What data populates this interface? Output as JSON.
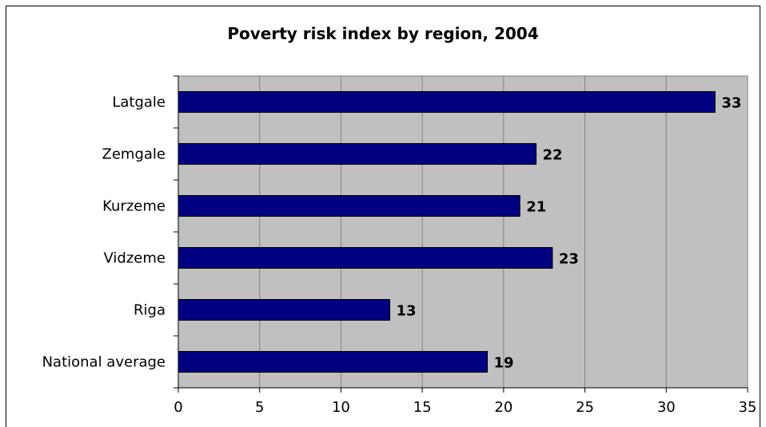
{
  "chart_data": {
    "type": "bar",
    "orientation": "horizontal",
    "title": "Poverty risk index by region, 2004",
    "xlabel": "",
    "ylabel": "",
    "categories": [
      "Latgale",
      "Zemgale",
      "Kurzeme",
      "Vidzeme",
      "Riga",
      "National average"
    ],
    "values": [
      33,
      22,
      21,
      23,
      13,
      19
    ],
    "xlim": [
      0,
      35
    ],
    "ticks": [
      0,
      5,
      10,
      15,
      20,
      25,
      30,
      35
    ],
    "tick_labels": [
      "0",
      "5",
      "10",
      "15",
      "20",
      "25",
      "30",
      "35"
    ],
    "data_labels": [
      "33",
      "22",
      "21",
      "23",
      "13",
      "19"
    ],
    "grid": "vertical",
    "legend": "none",
    "colors": {
      "bar_fill": "#000080",
      "plot_background": "#c0c0c0",
      "grid": "#808080"
    }
  }
}
